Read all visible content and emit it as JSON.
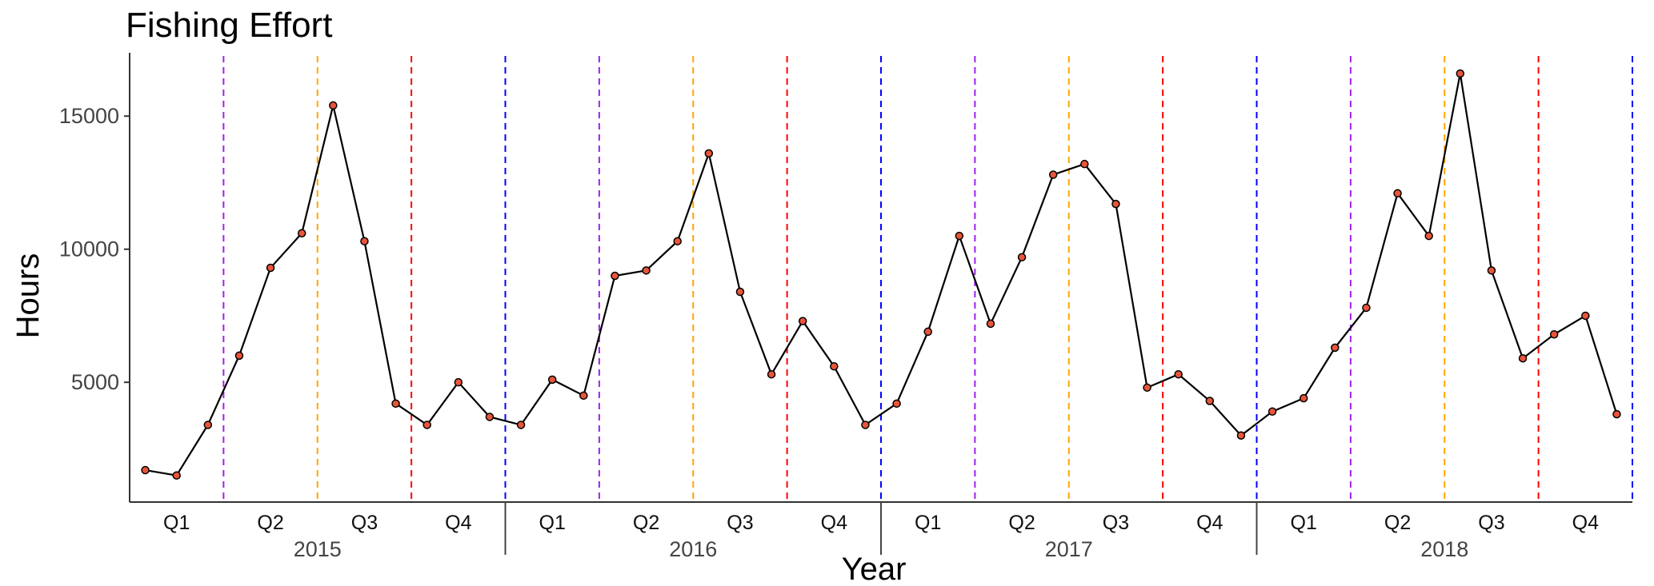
{
  "chart_data": {
    "type": "line",
    "title": "Fishing Effort",
    "xlabel": "Year",
    "ylabel": "Hours",
    "ylim": [
      500,
      17200
    ],
    "yticks": [
      5000,
      10000,
      15000
    ],
    "ytick_labels": [
      "5000",
      "10000",
      "15000"
    ],
    "years": [
      "2015",
      "2016",
      "2017",
      "2018"
    ],
    "quarters": [
      "Q1",
      "Q2",
      "Q3",
      "Q4"
    ],
    "grid": false,
    "line_color": "#000000",
    "point_fill": "#e8553a",
    "point_stroke": "#000000",
    "boundary_colors": {
      "Q1-Q2": "#a020f0",
      "Q2-Q3": "#ffa500",
      "Q3-Q4": "#ff0000",
      "year": "#0000ff"
    },
    "x": [
      "2015-01",
      "2015-02",
      "2015-03",
      "2015-04",
      "2015-05",
      "2015-06",
      "2015-07",
      "2015-08",
      "2015-09",
      "2015-10",
      "2015-11",
      "2015-12",
      "2016-01",
      "2016-02",
      "2016-03",
      "2016-04",
      "2016-05",
      "2016-06",
      "2016-07",
      "2016-08",
      "2016-09",
      "2016-10",
      "2016-11",
      "2016-12",
      "2017-01",
      "2017-02",
      "2017-03",
      "2017-04",
      "2017-05",
      "2017-06",
      "2017-07",
      "2017-08",
      "2017-09",
      "2017-10",
      "2017-11",
      "2017-12",
      "2018-01",
      "2018-02",
      "2018-03",
      "2018-04",
      "2018-05",
      "2018-06",
      "2018-07",
      "2018-08",
      "2018-09",
      "2018-10",
      "2018-11",
      "2018-12"
    ],
    "series": [
      {
        "values": [
          1700,
          1500,
          3400,
          6000,
          9300,
          10600,
          15400,
          10300,
          4200,
          3400,
          5000,
          3700,
          3400,
          5100,
          4500,
          9000,
          9200,
          10300,
          13600,
          8400,
          5300,
          7300,
          5600,
          3400,
          4200,
          6900,
          10500,
          7200,
          9700,
          12800,
          13200,
          11700,
          4800,
          5300,
          4300,
          3000,
          3900,
          4400,
          6300,
          7800,
          12100,
          10500,
          16600,
          9200,
          5900,
          6800,
          7500,
          3800
        ]
      }
    ]
  }
}
